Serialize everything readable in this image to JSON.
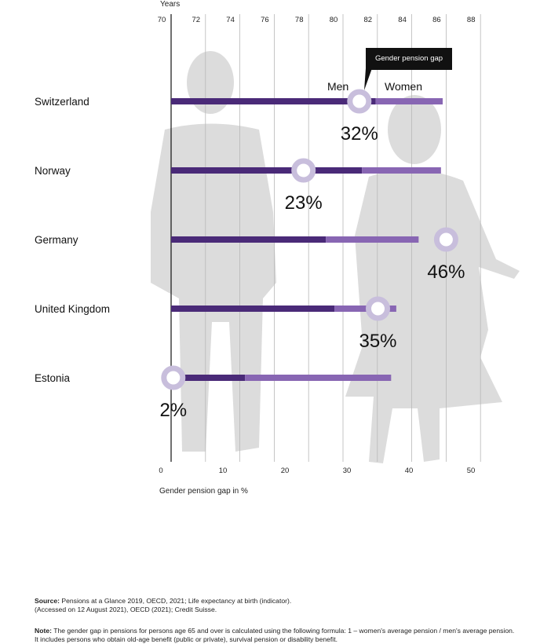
{
  "chart_data": {
    "type": "bar",
    "top_axis": {
      "label": "Years",
      "ticks": [
        70,
        72,
        74,
        76,
        78,
        80,
        82,
        84,
        86,
        88
      ],
      "range": [
        70,
        88
      ]
    },
    "bottom_axis": {
      "label": "Gender pension gap in %",
      "ticks": [
        0,
        10,
        20,
        30,
        40,
        50
      ],
      "range": [
        0,
        50
      ]
    },
    "legend": {
      "men": "Men",
      "women": "Women"
    },
    "callout": "Gender pension gap",
    "countries": [
      {
        "name": "Switzerland",
        "men_life_expectancy": 81.9,
        "women_life_expectancy": 85.8,
        "gap_pct": 32,
        "gap_label": "32%"
      },
      {
        "name": "Norway",
        "men_life_expectancy": 81.1,
        "women_life_expectancy": 85.7,
        "gap_pct": 23,
        "gap_label": "23%"
      },
      {
        "name": "Germany",
        "men_life_expectancy": 79.0,
        "women_life_expectancy": 84.4,
        "gap_pct": 46,
        "gap_label": "46%"
      },
      {
        "name": "United Kingdom",
        "men_life_expectancy": 79.5,
        "women_life_expectancy": 83.1,
        "gap_pct": 35,
        "gap_label": "35%"
      },
      {
        "name": "Estonia",
        "men_life_expectancy": 74.3,
        "women_life_expectancy": 82.8,
        "gap_pct": 2,
        "gap_label": "2%"
      }
    ],
    "colors": {
      "men": "#4a2a78",
      "women": "#8866b3",
      "gap_marker": "#c8bedc",
      "grid": "#b8b8b8",
      "silhouette": "#dcdcdc"
    }
  },
  "footer": {
    "source_label": "Source:",
    "source_text": "Pensions at a Glance 2019, OECD, 2021; Life expectancy at birth (indicator).",
    "source_text2": "(Accessed on 12 August 2021), OECD (2021); Credit Suisse.",
    "note_label": "Note:",
    "note_text": "The gender gap in pensions for persons age 65 and over is calculated using the following formula: 1 – women's average pension / men's average pension. It includes persons who obtain old-age benefit (public or private), survival pension or disability benefit."
  }
}
